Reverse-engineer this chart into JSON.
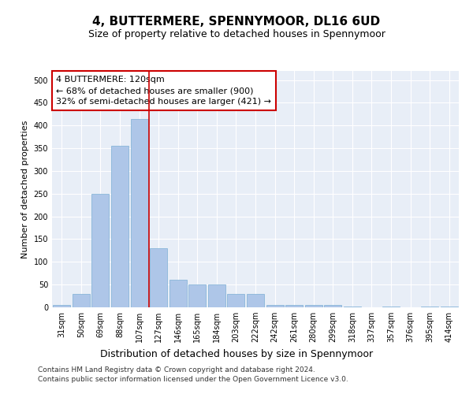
{
  "title": "4, BUTTERMERE, SPENNYMOOR, DL16 6UD",
  "subtitle": "Size of property relative to detached houses in Spennymoor",
  "xlabel": "Distribution of detached houses by size in Spennymoor",
  "ylabel": "Number of detached properties",
  "categories": [
    "31sqm",
    "50sqm",
    "69sqm",
    "88sqm",
    "107sqm",
    "127sqm",
    "146sqm",
    "165sqm",
    "184sqm",
    "203sqm",
    "222sqm",
    "242sqm",
    "261sqm",
    "280sqm",
    "299sqm",
    "318sqm",
    "337sqm",
    "357sqm",
    "376sqm",
    "395sqm",
    "414sqm"
  ],
  "values": [
    5,
    30,
    250,
    355,
    415,
    130,
    60,
    50,
    50,
    30,
    30,
    5,
    5,
    5,
    5,
    2,
    0,
    2,
    0,
    2,
    2
  ],
  "bar_color": "#aec6e8",
  "bar_edge_color": "#7bafd4",
  "vline_x": 4.5,
  "vline_color": "#cc0000",
  "annotation_text": "4 BUTTERMERE: 120sqm\n← 68% of detached houses are smaller (900)\n32% of semi-detached houses are larger (421) →",
  "annotation_box_color": "#ffffff",
  "annotation_box_edge": "#cc0000",
  "ylim": [
    0,
    520
  ],
  "yticks": [
    0,
    50,
    100,
    150,
    200,
    250,
    300,
    350,
    400,
    450,
    500
  ],
  "background_color": "#e8eef7",
  "grid_color": "#ffffff",
  "footer1": "Contains HM Land Registry data © Crown copyright and database right 2024.",
  "footer2": "Contains public sector information licensed under the Open Government Licence v3.0.",
  "title_fontsize": 11,
  "subtitle_fontsize": 9,
  "xlabel_fontsize": 9,
  "ylabel_fontsize": 8,
  "tick_fontsize": 7,
  "annotation_fontsize": 8,
  "footer_fontsize": 6.5
}
